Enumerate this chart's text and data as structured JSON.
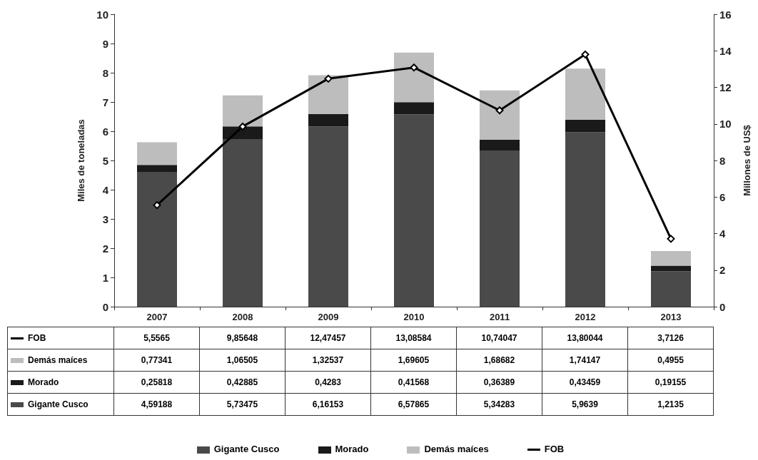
{
  "chart_data": {
    "type": "bar",
    "stacked": true,
    "ylabel": "Miles de toneladas",
    "y2label": "Millones de US$",
    "categories": [
      "2007",
      "2008",
      "2009",
      "2010",
      "2011",
      "2012",
      "2013"
    ],
    "series": [
      {
        "name": "Gigante Cusco",
        "color": "#4a4a4a",
        "values": [
          4.59188,
          5.73475,
          6.16153,
          6.57865,
          5.34283,
          5.9639,
          1.2135
        ],
        "value_labels": [
          "4,59188",
          "5,73475",
          "6,16153",
          "6,57865",
          "5,34283",
          "5,9639",
          "1,2135"
        ]
      },
      {
        "name": "Morado",
        "color": "#1a1a1a",
        "values": [
          0.25818,
          0.42885,
          0.4283,
          0.41568,
          0.36389,
          0.43459,
          0.19155
        ],
        "value_labels": [
          "0,25818",
          "0,42885",
          "0,4283",
          "0,41568",
          "0,36389",
          "0,43459",
          "0,19155"
        ]
      },
      {
        "name": "Demás maíces",
        "color": "#bdbdbd",
        "values": [
          0.77341,
          1.06505,
          1.32537,
          1.69605,
          1.68682,
          1.74147,
          0.4955
        ],
        "value_labels": [
          "0,77341",
          "1,06505",
          "1,32537",
          "1,69605",
          "1,68682",
          "1,74147",
          "0,4955"
        ]
      },
      {
        "name": "FOB",
        "type": "line",
        "axis": "y2",
        "color": "#000000",
        "values": [
          5.5565,
          9.85648,
          12.47457,
          13.08584,
          10.74047,
          13.80044,
          3.7126
        ],
        "value_labels": [
          "5,5565",
          "9,85648",
          "12,47457",
          "13,08584",
          "10,74047",
          "13,80044",
          "3,7126"
        ]
      }
    ],
    "ylim": [
      0,
      10
    ],
    "yticks": [
      0,
      1,
      2,
      3,
      4,
      5,
      6,
      7,
      8,
      9,
      10
    ],
    "y2lim": [
      0,
      16
    ],
    "y2ticks": [
      0,
      2,
      4,
      6,
      8,
      10,
      12,
      14,
      16
    ],
    "grid": false,
    "legend": "bottom",
    "marker": "diamond",
    "line_style": "solid"
  }
}
